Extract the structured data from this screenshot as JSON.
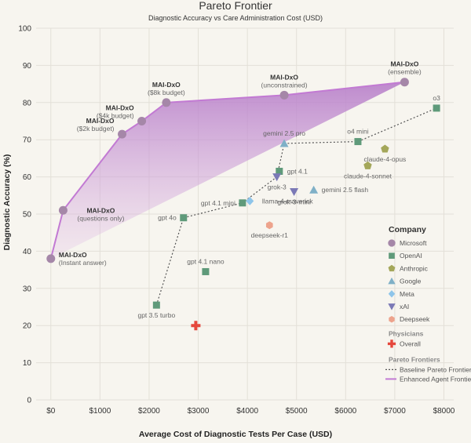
{
  "chart_data": {
    "type": "scatter",
    "title": "Pareto Frontier",
    "subtitle": "Diagnostic Accuracy vs Care Administration Cost (USD)",
    "xlabel": "Average Cost of Diagnostic Tests Per Case (USD)",
    "ylabel": "Diagnostic Accuracy (%)",
    "xlim": [
      -300,
      8200
    ],
    "ylim": [
      0,
      100
    ],
    "x_ticks": [
      0,
      1000,
      2000,
      3000,
      4000,
      5000,
      6000,
      7000,
      8000
    ],
    "x_tick_labels": [
      "$0",
      "$1000",
      "$2000",
      "$3000",
      "$4000",
      "$5000",
      "$6000",
      "$7000",
      "$8000"
    ],
    "y_ticks": [
      0,
      10,
      20,
      30,
      40,
      50,
      60,
      70,
      80,
      90,
      100
    ],
    "grid": true,
    "legend_position": "right",
    "colors": {
      "Microsoft": "#a587a8",
      "OpenAI": "#5f9a7a",
      "Anthropic": "#a4a75a",
      "Google": "#7fb0c7",
      "Meta": "#8ec5ea",
      "xAI": "#7b79b6",
      "Deepseek": "#eda38c",
      "Overall": "#e5473c",
      "frontier": "#c27ad3",
      "baseline": "#555555"
    },
    "points": [
      {
        "label": "MAI-DxO\n(Instant answer)",
        "company": "Microsoft",
        "x": 0,
        "y": 38,
        "lbl_anchor": "right",
        "bold_first": true
      },
      {
        "label": "MAI-DxO\n(questions only)",
        "company": "Microsoft",
        "x": 250,
        "y": 51,
        "lbl_anchor": "below-right",
        "bold_first": true
      },
      {
        "label": "MAI-DxO\n($2k budget)",
        "company": "Microsoft",
        "x": 1450,
        "y": 71.5,
        "lbl_anchor": "above-left",
        "bold_first": true
      },
      {
        "label": "MAI-DxO\n($4k budget)",
        "company": "Microsoft",
        "x": 1850,
        "y": 75,
        "lbl_anchor": "above-left",
        "bold_first": true
      },
      {
        "label": "MAI-DxO\n($8k budget)",
        "company": "Microsoft",
        "x": 2350,
        "y": 80,
        "lbl_anchor": "above",
        "bold_first": true
      },
      {
        "label": "MAI-DxO\n(unconstrained)",
        "company": "Microsoft",
        "x": 4750,
        "y": 82,
        "lbl_anchor": "above",
        "bold_first": true
      },
      {
        "label": "MAI-DxO\n(ensemble)",
        "company": "Microsoft",
        "x": 7200,
        "y": 85.5,
        "lbl_anchor": "above",
        "bold_first": true
      },
      {
        "label": "o3",
        "company": "OpenAI",
        "x": 7850,
        "y": 78.5,
        "lbl_anchor": "above"
      },
      {
        "label": "o4 mini",
        "company": "OpenAI",
        "x": 6250,
        "y": 69.5,
        "lbl_anchor": "above"
      },
      {
        "label": "gpt 4.1",
        "company": "OpenAI",
        "x": 4650,
        "y": 61.5,
        "lbl_anchor": "right"
      },
      {
        "label": "gpt 4.1 mini",
        "company": "OpenAI",
        "x": 3900,
        "y": 53,
        "lbl_anchor": "left"
      },
      {
        "label": "gpt 4o",
        "company": "OpenAI",
        "x": 2700,
        "y": 49,
        "lbl_anchor": "left"
      },
      {
        "label": "gpt 4.1 nano",
        "company": "OpenAI",
        "x": 3150,
        "y": 34.5,
        "lbl_anchor": "above"
      },
      {
        "label": "gpt 3.5 turbo",
        "company": "OpenAI",
        "x": 2150,
        "y": 25.5,
        "lbl_anchor": "below"
      },
      {
        "label": "claude-4-opus",
        "company": "Anthropic",
        "x": 6800,
        "y": 67.5,
        "lbl_anchor": "below"
      },
      {
        "label": "claude-4-sonnet",
        "company": "Anthropic",
        "x": 6450,
        "y": 63,
        "lbl_anchor": "below"
      },
      {
        "label": "gemini 2.5 pro",
        "company": "Google",
        "x": 4750,
        "y": 69,
        "lbl_anchor": "above"
      },
      {
        "label": "gemini 2.5 flash",
        "company": "Google",
        "x": 5350,
        "y": 56.5,
        "lbl_anchor": "right"
      },
      {
        "label": "llama-4-maverick",
        "company": "Meta",
        "x": 4050,
        "y": 53.5,
        "lbl_anchor": "below-right"
      },
      {
        "label": "grok-3",
        "company": "xAI",
        "x": 4600,
        "y": 60,
        "lbl_anchor": "below"
      },
      {
        "label": "grok-3-mini",
        "company": "xAI",
        "x": 4950,
        "y": 56,
        "lbl_anchor": "below"
      },
      {
        "label": "deepseek-r1",
        "company": "Deepseek",
        "x": 4450,
        "y": 47,
        "lbl_anchor": "below"
      },
      {
        "label": "",
        "company": "Overall",
        "x": 2950,
        "y": 20,
        "lbl_anchor": "none"
      }
    ],
    "baseline_frontier": [
      [
        2150,
        25.5
      ],
      [
        2700,
        49
      ],
      [
        3900,
        53
      ],
      [
        4600,
        60
      ],
      [
        4750,
        69
      ],
      [
        6250,
        69.5
      ],
      [
        7850,
        78.5
      ]
    ],
    "enhanced_frontier": [
      [
        0,
        38
      ],
      [
        250,
        51
      ],
      [
        1450,
        71.5
      ],
      [
        1850,
        75
      ],
      [
        2350,
        80
      ],
      [
        4750,
        82
      ],
      [
        7200,
        85.5
      ]
    ],
    "legend": {
      "title": "Company",
      "companies": [
        "Microsoft",
        "OpenAI",
        "Anthropic",
        "Google",
        "Meta",
        "xAI",
        "Deepseek"
      ],
      "physicians_title": "Physicians",
      "physicians": [
        "Overall"
      ],
      "frontiers_title": "Pareto Frontiers",
      "frontiers": [
        "Baseline Pareto Frontier",
        "Enhanced Agent Frontier"
      ]
    }
  }
}
